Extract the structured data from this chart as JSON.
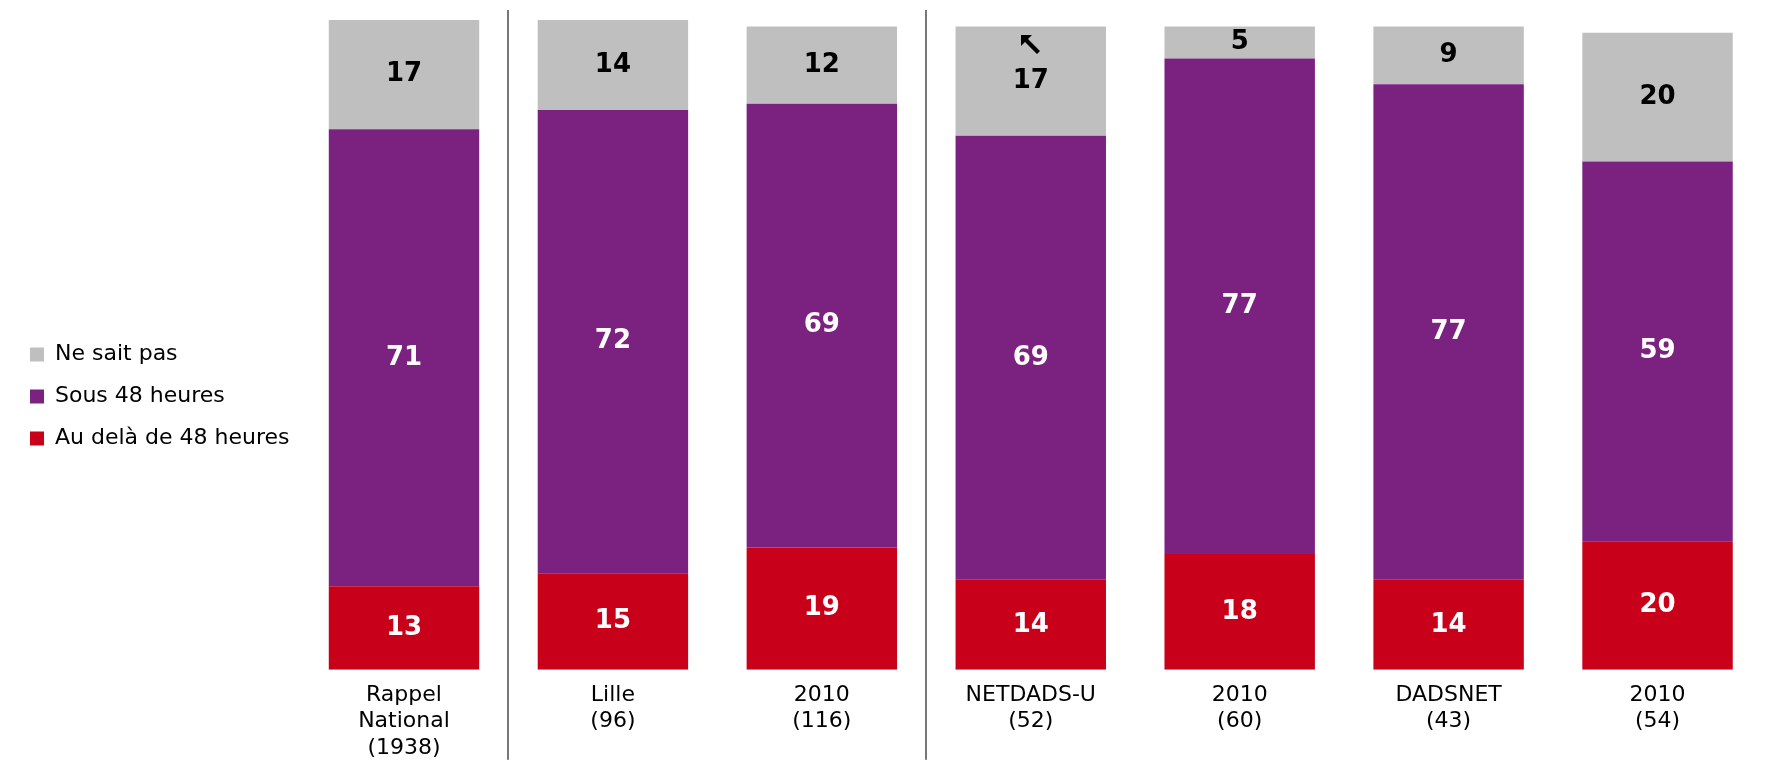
{
  "chart_data": {
    "type": "bar",
    "stacked": true,
    "categories": [
      "Rappel National (1938)",
      "Lille (96)",
      "2010 (116)",
      "NETDADS-U (52)",
      "2010 (60)",
      "DADSNET (43)",
      "2010 (54)"
    ],
    "series": [
      {
        "name": "Au delà de 48 heures",
        "color": "#c8001a",
        "values": [
          13,
          15,
          19,
          14,
          18,
          14,
          20
        ]
      },
      {
        "name": "Sous 48 heures",
        "color": "#7b217f",
        "values": [
          71,
          72,
          69,
          69,
          77,
          77,
          59
        ]
      },
      {
        "name": "Ne sait pas",
        "color": "#bfbfbf",
        "values": [
          17,
          14,
          12,
          17,
          5,
          9,
          20
        ]
      }
    ],
    "data_labels": true,
    "legend": "left",
    "grid": false,
    "tick_labels": "x"
  }
}
